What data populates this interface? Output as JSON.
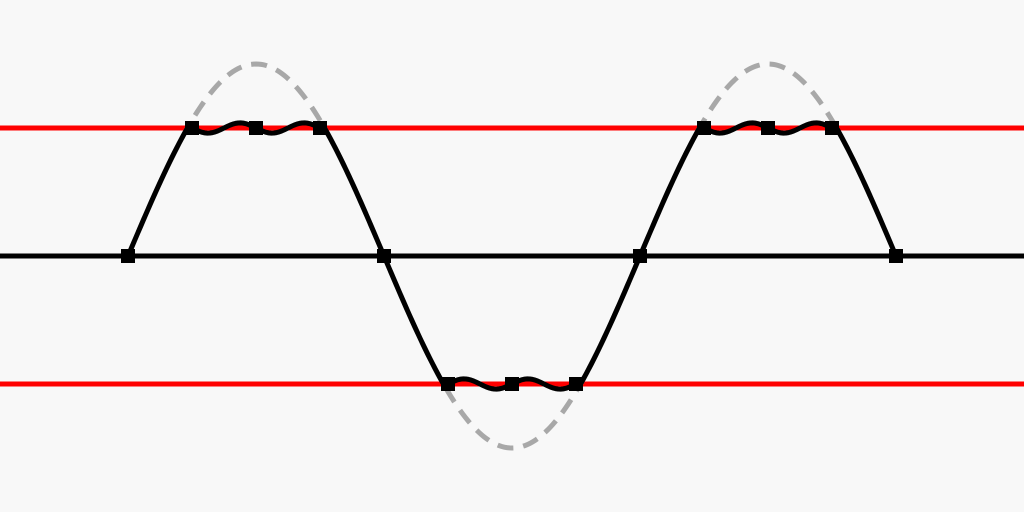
{
  "diagram": {
    "description_free": true,
    "colors": {
      "background": "#f8f8f8",
      "clip_lines": "#ff0000",
      "axis": "#000000",
      "ideal_wave": "#a8a8a8",
      "clipped_wave": "#000000",
      "sample_markers": "#000000"
    },
    "clip_level": 0.5,
    "ideal_amplitude": 0.75,
    "wave_cycles": 1.5,
    "samples": [
      {
        "phase": 0.0,
        "value": 0
      },
      {
        "phase": 0.125,
        "value": 0.5
      },
      {
        "phase": 0.25,
        "value": 0.5
      },
      {
        "phase": 0.375,
        "value": 0.5
      },
      {
        "phase": 0.5,
        "value": 0
      },
      {
        "phase": 0.625,
        "value": -0.5
      },
      {
        "phase": 0.75,
        "value": -0.5
      },
      {
        "phase": 0.875,
        "value": -0.5
      },
      {
        "phase": 1.0,
        "value": 0
      },
      {
        "phase": 1.125,
        "value": 0.5
      },
      {
        "phase": 1.25,
        "value": 0.5
      },
      {
        "phase": 1.375,
        "value": 0.5
      },
      {
        "phase": 1.5,
        "value": 0
      }
    ]
  }
}
